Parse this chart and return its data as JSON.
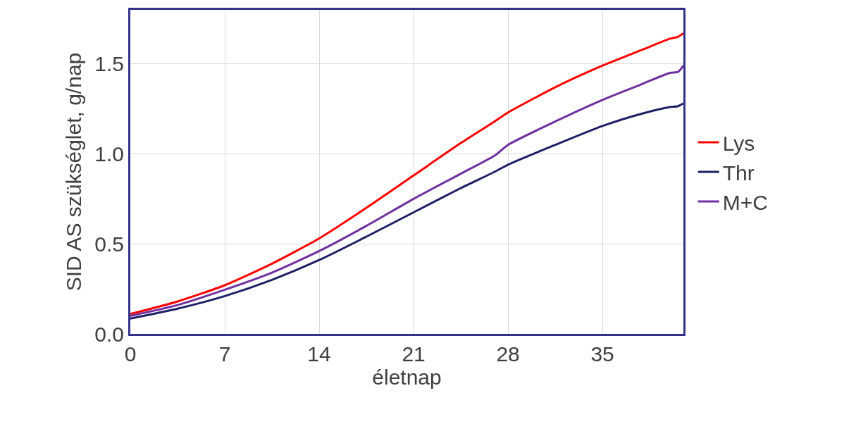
{
  "chart_data": {
    "type": "line",
    "xlabel": "életnap",
    "ylabel": "SID AS szükséglet, g/nap",
    "xlim": [
      0,
      41
    ],
    "xticks": [
      0,
      7,
      14,
      21,
      28,
      35
    ],
    "ylim": [
      0,
      1.8
    ],
    "yticks": [
      {
        "value": 0,
        "label": "0.0"
      },
      0.5,
      {
        "value": 1,
        "label": "1.0"
      },
      1.5
    ],
    "grid": true,
    "legend": "right",
    "marker": "none",
    "line_style": "solid",
    "x": [
      0,
      3.5,
      7,
      10.5,
      14,
      17.5,
      21,
      24.5,
      27,
      28,
      31.5,
      35,
      38,
      40,
      40.6,
      41
    ],
    "series": [
      {
        "name": "Lys",
        "color": "#ff0000",
        "values": [
          0.11,
          0.18,
          0.27,
          0.39,
          0.53,
          0.7,
          0.88,
          1.06,
          1.18,
          1.23,
          1.37,
          1.49,
          1.58,
          1.64,
          1.65,
          1.67
        ]
      },
      {
        "name": "Thr",
        "color": "#1f1f66",
        "values": [
          0.085,
          0.14,
          0.21,
          0.3,
          0.41,
          0.54,
          0.675,
          0.81,
          0.9,
          0.94,
          1.05,
          1.155,
          1.225,
          1.26,
          1.265,
          1.28
        ]
      },
      {
        "name": "M+C",
        "color": "#7030a0",
        "values": [
          0.1,
          0.16,
          0.245,
          0.34,
          0.46,
          0.6,
          0.75,
          0.89,
          0.99,
          1.05,
          1.18,
          1.3,
          1.39,
          1.45,
          1.455,
          1.49
        ]
      }
    ]
  }
}
